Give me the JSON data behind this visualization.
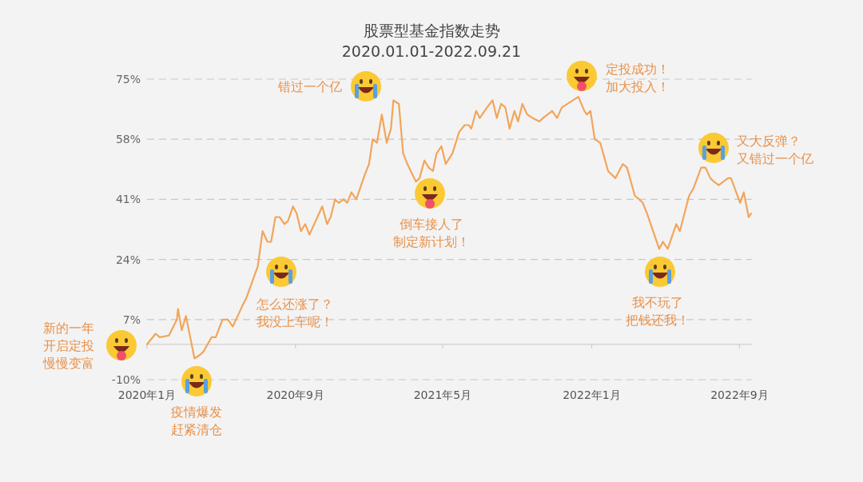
{
  "chart_data": {
    "type": "line",
    "title": "股票型基金指数走势",
    "subtitle": "2020.01.01-2022.09.21",
    "x": [
      "2020-01-01",
      "2020-01-15",
      "2020-01-22",
      "2020-02-06",
      "2020-02-19",
      "2020-02-21",
      "2020-02-27",
      "2020-03-05",
      "2020-03-19",
      "2020-03-28",
      "2020-04-03",
      "2020-04-16",
      "2020-04-23",
      "2020-05-04",
      "2020-05-13",
      "2020-05-21",
      "2020-06-06",
      "2020-06-12",
      "2020-07-01",
      "2020-07-09",
      "2020-07-17",
      "2020-07-23",
      "2020-07-30",
      "2020-08-06",
      "2020-08-14",
      "2020-08-20",
      "2020-08-28",
      "2020-09-03",
      "2020-09-10",
      "2020-09-17",
      "2020-09-24",
      "2020-10-15",
      "2020-10-23",
      "2020-10-29",
      "2020-11-05",
      "2020-11-11",
      "2020-11-19",
      "2020-11-25",
      "2020-12-02",
      "2020-12-10",
      "2020-12-20",
      "2020-12-24",
      "2020-12-31",
      "2021-01-06",
      "2021-01-13",
      "2021-01-21",
      "2021-01-29",
      "2021-02-05",
      "2021-02-09",
      "2021-02-18",
      "2021-02-25",
      "2021-03-04",
      "2021-03-18",
      "2021-03-24",
      "2021-04-01",
      "2021-04-08",
      "2021-04-15",
      "2021-04-21",
      "2021-04-29",
      "2021-05-06",
      "2021-05-17",
      "2021-05-28",
      "2021-06-06",
      "2021-06-13",
      "2021-06-17",
      "2021-06-25",
      "2021-07-01",
      "2021-07-13",
      "2021-07-22",
      "2021-07-29",
      "2021-08-05",
      "2021-08-12",
      "2021-08-19",
      "2021-08-27",
      "2021-09-02",
      "2021-09-09",
      "2021-09-17",
      "2021-09-26",
      "2021-10-07",
      "2021-10-13",
      "2021-10-28",
      "2021-11-05",
      "2021-11-13",
      "2021-12-10",
      "2021-12-20",
      "2021-12-24",
      "2021-12-30",
      "2022-01-06",
      "2022-01-15",
      "2022-01-28",
      "2022-02-09",
      "2022-02-21",
      "2022-02-28",
      "2022-03-13",
      "2022-03-20",
      "2022-03-26",
      "2022-04-02",
      "2022-04-22",
      "2022-04-28",
      "2022-05-06",
      "2022-05-20",
      "2022-05-26",
      "2022-06-10",
      "2022-06-17",
      "2022-06-30",
      "2022-07-07",
      "2022-07-15",
      "2022-07-21",
      "2022-07-29",
      "2022-08-13",
      "2022-08-18",
      "2022-09-02",
      "2022-09-08",
      "2022-09-16",
      "2022-09-20"
    ],
    "series": [
      {
        "color": "#f2a55a",
        "values": [
          0,
          3,
          2,
          2.5,
          7,
          10,
          4,
          8,
          -4,
          -3,
          -2,
          2,
          2,
          7,
          7,
          5,
          11,
          13,
          22,
          32,
          29,
          29,
          36,
          36,
          34,
          35,
          39,
          37,
          32,
          34,
          31,
          39,
          34,
          36,
          41,
          40,
          41,
          40,
          43,
          41,
          46,
          48,
          51,
          58,
          57,
          65,
          57,
          61,
          69,
          68,
          54,
          51,
          46,
          47,
          52,
          50,
          49,
          54,
          56,
          51,
          54,
          60,
          62,
          62,
          61,
          66,
          64,
          67,
          69,
          64,
          68,
          67,
          61,
          66,
          63,
          68,
          65,
          64,
          63,
          64,
          66,
          64,
          67,
          70,
          66,
          65,
          66,
          58,
          57,
          49,
          47,
          51,
          50,
          42,
          41,
          40,
          37,
          27,
          29,
          27,
          34,
          32,
          42,
          44,
          50,
          50,
          47,
          46,
          45,
          47,
          47,
          40,
          43,
          36,
          37
        ]
      }
    ],
    "xlim": [
      "2020-01-01",
      "2022-09-21"
    ],
    "xticks": [
      {
        "value": "2020-01-01",
        "label": "2020年1月"
      },
      {
        "value": "2020-09-01",
        "label": "2020年9月"
      },
      {
        "value": "2021-05-01",
        "label": "2021年5月"
      },
      {
        "value": "2022-01-01",
        "label": "2022年1月"
      },
      {
        "value": "2022-09-01",
        "label": "2022年9月"
      }
    ],
    "ylim": [
      -10,
      75
    ],
    "yticks": [
      {
        "value": -10,
        "label": "-10%"
      },
      {
        "value": 7,
        "label": "7%"
      },
      {
        "value": 24,
        "label": "24%"
      },
      {
        "value": 41,
        "label": "41%"
      },
      {
        "value": 58,
        "label": "58%"
      },
      {
        "value": 75,
        "label": "75%"
      }
    ],
    "grid": "y",
    "marker": "none",
    "line_style": "solid",
    "ref_lines": [
      {
        "axis": "y",
        "value": 0,
        "color": "#d6d6d6",
        "line_style": "solid"
      }
    ],
    "annotations": [
      "新的一年开启定投慢慢变富",
      "疫情爆发赶紧清仓",
      "怎么还涨了？我没上车呢！",
      "错过一个亿",
      "倒车接人了制定新计划！",
      "定投成功！加大投入！",
      "我不玩了把钱还我！",
      "又大反弹？又错过一个亿"
    ]
  }
}
